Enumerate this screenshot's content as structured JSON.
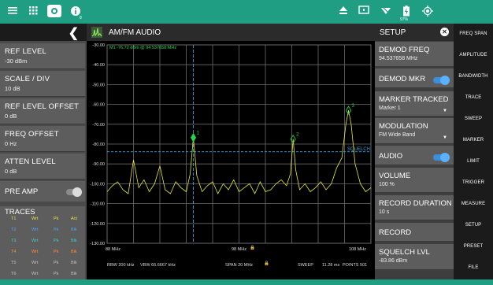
{
  "topbar": {
    "icons": [
      "menu-icon",
      "grid-icon",
      "camera-icon",
      "info-icon",
      "eject-icon",
      "screen-icon",
      "wifi-icon",
      "battery-icon",
      "gps-icon"
    ],
    "info_sub": "8",
    "battery_label": "97%"
  },
  "left": {
    "items": [
      {
        "title": "REF LEVEL",
        "value": "-30 dBm"
      },
      {
        "title": "SCALE / DIV",
        "value": "10 dB"
      },
      {
        "title": "REF LEVEL OFFSET",
        "value": "0 dB"
      },
      {
        "title": "FREQ OFFSET",
        "value": "0 Hz"
      },
      {
        "title": "ATTEN LEVEL",
        "value": "0 dB"
      }
    ],
    "preamp_label": "PRE AMP",
    "traces_title": "TRACES",
    "traces": [
      {
        "id": "T1",
        "mode": "Wrt",
        "det": "Pk",
        "state": "Act"
      },
      {
        "id": "T2",
        "mode": "Wrt",
        "det": "Pk",
        "state": "Blk"
      },
      {
        "id": "T3",
        "mode": "Wrt",
        "det": "Pk",
        "state": "Blk"
      },
      {
        "id": "T4",
        "mode": "Wrt",
        "det": "Pk",
        "state": "Blk"
      },
      {
        "id": "T5",
        "mode": "Wrt",
        "det": "Pk",
        "state": "Blk"
      },
      {
        "id": "T6",
        "mode": "Wrt",
        "det": "Pk",
        "state": "Blk"
      }
    ],
    "trace_colors": [
      "#f0e040",
      "#4aa3ff",
      "#3fd0c0",
      "#ff8c3a",
      "#c0c0c0",
      "#c0c0c0"
    ]
  },
  "plot": {
    "title": "AM/FM AUDIO",
    "marker_readout": "M1   -76.72 dBm @ 94.537658 MHz",
    "y_ticks": [
      "-30.00",
      "-40.00",
      "-50.00",
      "-60.00",
      "-70.00",
      "-80.00",
      "-90.00",
      "-100.00",
      "-110.00",
      "-120.00",
      "-130.00"
    ],
    "x_start": "88 MHz",
    "x_center": "98 MHz",
    "x_stop": "108 MHz",
    "rbw": "RBW 200 kHz",
    "vbw": "VBW 66.6667 kHz",
    "span": "SPAN 20 MHz",
    "sweep": "SWEEP",
    "sweep_time": "11.28 ms",
    "points": "POINTS 501",
    "squelch_label": "SQUELCH",
    "markers": [
      "1",
      "2",
      "3"
    ],
    "colors": {
      "trace": "#e8e832",
      "grid": "#6a6a6a",
      "marker": "#29d44a",
      "squelch": "#2fa3e0"
    }
  },
  "chart_data": {
    "type": "line",
    "x_unit": "MHz",
    "xlim": [
      88,
      108
    ],
    "ylim": [
      -130,
      -30
    ],
    "ylabel": "",
    "squelch_level": -83.86,
    "markers": [
      {
        "label": "1",
        "x": 94.54,
        "y": -76.72
      },
      {
        "label": "2",
        "x": 102.1,
        "y": -77.5
      },
      {
        "label": "3",
        "x": 106.3,
        "y": -63.0
      }
    ],
    "series": [
      {
        "x": [
          88.0,
          88.4,
          88.8,
          89.2,
          89.6,
          90.0,
          90.4,
          90.8,
          91.2,
          91.6,
          92.0,
          92.4,
          92.8,
          93.2,
          93.6,
          94.0,
          94.3,
          94.54,
          94.8,
          95.2,
          95.6,
          96.0,
          96.4,
          96.8,
          97.2,
          97.6,
          98.0,
          98.4,
          98.8,
          99.2,
          99.6,
          100.0,
          100.4,
          100.8,
          101.2,
          101.6,
          101.9,
          102.1,
          102.3,
          102.6,
          103.0,
          103.4,
          103.8,
          104.2,
          104.6,
          105.0,
          105.4,
          105.8,
          106.1,
          106.3,
          106.5,
          106.8,
          107.2,
          107.6,
          108.0
        ],
        "y": [
          -104,
          -101,
          -99,
          -103,
          -105,
          -88,
          -102,
          -98,
          -104,
          -100,
          -91,
          -103,
          -105,
          -99,
          -102,
          -104,
          -95,
          -76.7,
          -96,
          -104,
          -101,
          -99,
          -105,
          -100,
          -103,
          -98,
          -104,
          -102,
          -100,
          -105,
          -99,
          -104,
          -103,
          -100,
          -98,
          -101,
          -95,
          -77.5,
          -93,
          -103,
          -100,
          -104,
          -102,
          -99,
          -103,
          -100,
          -92,
          -87,
          -70,
          -63,
          -70,
          -90,
          -100,
          -104,
          -102
        ]
      }
    ]
  },
  "setup": {
    "title": "SETUP",
    "items": [
      {
        "title": "DEMOD FREQ",
        "value": "94.537658 MHz"
      },
      {
        "title": "DEMOD MKR",
        "toggle": true
      },
      {
        "title": "MARKER TRACKED",
        "value": "Marker 1",
        "dropdown": true
      },
      {
        "title": "MODULATION",
        "value": "FM Wide Band",
        "dropdown": true
      },
      {
        "title": "AUDIO",
        "toggle": true
      },
      {
        "title": "VOLUME",
        "value": "100 %"
      },
      {
        "title": "RECORD DURATION",
        "value": "10 s"
      },
      {
        "title": "RECORD"
      },
      {
        "title": "SQUELCH LVL",
        "value": "-83.86 dBm"
      }
    ]
  },
  "menu": {
    "items": [
      "FREQ SPAN",
      "AMPLITUDE",
      "BANDWIDTH",
      "TRACE",
      "SWEEP",
      "MARKER",
      "LIMIT",
      "TRIGGER",
      "MEASURE",
      "SETUP",
      "PRESET",
      "FILE"
    ]
  }
}
